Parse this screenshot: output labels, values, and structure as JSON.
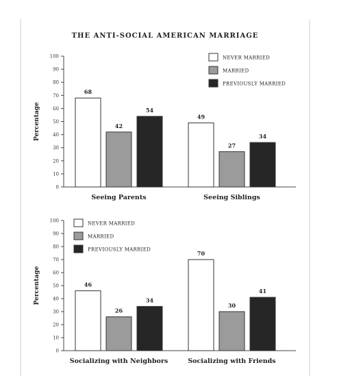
{
  "figure": {
    "title": "THE ANTI-SOCIAL AMERICAN MARRIAGE"
  },
  "chart_data": [
    {
      "type": "bar",
      "ylabel": "Percentage",
      "ylim": [
        0,
        100
      ],
      "yticks": [
        0,
        10,
        20,
        30,
        40,
        50,
        60,
        70,
        80,
        90,
        100
      ],
      "categories": [
        "Seeing Parents",
        "Seeing Siblings"
      ],
      "series": [
        {
          "name": "NEVER MARRIED",
          "color": "#ffffff",
          "values": [
            68,
            49
          ]
        },
        {
          "name": "MARRIED",
          "color": "#9b9b9b",
          "values": [
            42,
            27
          ]
        },
        {
          "name": "PREVIOUSLY MARRIED",
          "color": "#262626",
          "values": [
            54,
            34
          ]
        }
      ],
      "legend": "top-right",
      "grid": false
    },
    {
      "type": "bar",
      "ylabel": "Percentage",
      "ylim": [
        0,
        100
      ],
      "yticks": [
        0,
        10,
        20,
        30,
        40,
        50,
        60,
        70,
        80,
        90,
        100
      ],
      "categories": [
        "Socializing with Neighbors",
        "Socializing with Friends"
      ],
      "series": [
        {
          "name": "NEVER MARRIED",
          "color": "#ffffff",
          "values": [
            46,
            70
          ]
        },
        {
          "name": "MARRIED",
          "color": "#9b9b9b",
          "values": [
            26,
            30
          ]
        },
        {
          "name": "PREVIOUSLY MARRIED",
          "color": "#262626",
          "values": [
            34,
            41
          ]
        }
      ],
      "legend": "top-left",
      "grid": false
    }
  ]
}
